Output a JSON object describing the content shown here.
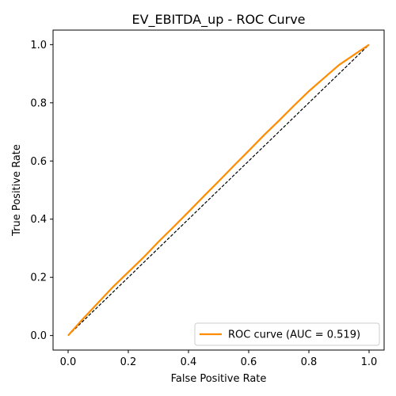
{
  "chart_data": {
    "type": "line",
    "title": "EV_EBITDA_up - ROC Curve",
    "xlabel": "False Positive Rate",
    "ylabel": "True Positive Rate",
    "xlim": [
      -0.05,
      1.05
    ],
    "ylim": [
      -0.05,
      1.05
    ],
    "xticks": [
      0.0,
      0.2,
      0.4,
      0.6,
      0.8,
      1.0
    ],
    "yticks": [
      0.0,
      0.2,
      0.4,
      0.6,
      0.8,
      1.0
    ],
    "xtick_labels": [
      "0.0",
      "0.2",
      "0.4",
      "0.6",
      "0.8",
      "1.0"
    ],
    "ytick_labels": [
      "0.0",
      "0.2",
      "0.4",
      "0.6",
      "0.8",
      "1.0"
    ],
    "grid": false,
    "legend_position": "lower-right",
    "series": [
      {
        "name": "ROC curve (AUC = 0.519)",
        "color": "#ff8c00",
        "style": "solid",
        "x": [
          0.0,
          0.05,
          0.1,
          0.15,
          0.2,
          0.25,
          0.3,
          0.35,
          0.4,
          0.45,
          0.5,
          0.55,
          0.6,
          0.65,
          0.7,
          0.75,
          0.8,
          0.85,
          0.9,
          0.95,
          1.0
        ],
        "y": [
          0.0,
          0.058,
          0.113,
          0.168,
          0.218,
          0.268,
          0.322,
          0.373,
          0.425,
          0.478,
          0.53,
          0.583,
          0.635,
          0.688,
          0.738,
          0.79,
          0.84,
          0.885,
          0.93,
          0.965,
          1.0
        ]
      },
      {
        "name": "",
        "color": "#000000",
        "style": "dashed",
        "x": [
          0.0,
          1.0
        ],
        "y": [
          0.0,
          1.0
        ]
      }
    ]
  }
}
